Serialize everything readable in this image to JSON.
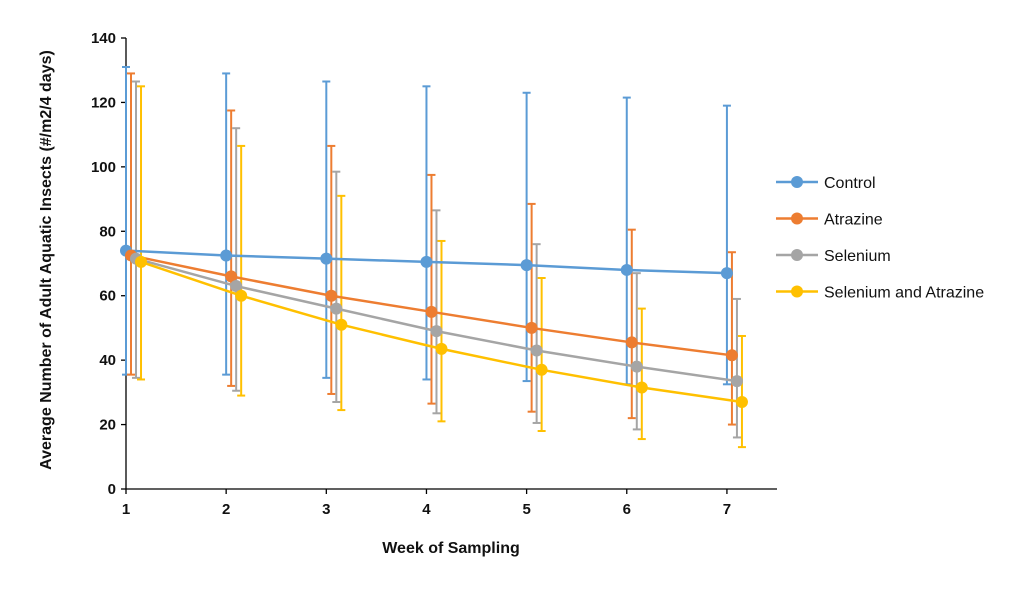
{
  "chart_data": {
    "type": "line",
    "xlabel": "Week of Sampling",
    "ylabel": "Average Number of Adult Aquatic Insects (#/m2/4 days)",
    "xlim": [
      1,
      7.5
    ],
    "ylim": [
      0,
      140
    ],
    "x_ticks": [
      "1",
      "2",
      "3",
      "4",
      "5",
      "6",
      "7"
    ],
    "y_ticks": [
      "0",
      "20",
      "40",
      "60",
      "80",
      "100",
      "120",
      "140"
    ],
    "grid": false,
    "legend_position": "right",
    "series": [
      {
        "name": "Control",
        "color": "#5B9BD5",
        "x": [
          1,
          2,
          3,
          4,
          5,
          6,
          7
        ],
        "values": [
          74,
          72.5,
          71.5,
          70.5,
          69.5,
          68,
          67
        ],
        "error_upper": [
          131,
          129,
          126.5,
          125,
          123,
          121.5,
          119
        ],
        "error_lower": [
          35.5,
          35.5,
          34.5,
          34,
          33.5,
          32.5,
          32.5
        ]
      },
      {
        "name": "Atrazine",
        "color": "#ED7D31",
        "x": [
          1.05,
          2.05,
          3.05,
          4.05,
          5.05,
          6.05,
          7.05
        ],
        "values": [
          72.5,
          66,
          60,
          55,
          50,
          45.5,
          41.5
        ],
        "error_upper": [
          129,
          117.5,
          106.5,
          97.5,
          88.5,
          80.5,
          73.5
        ],
        "error_lower": [
          35.5,
          32,
          29.5,
          26.5,
          24,
          22,
          20
        ]
      },
      {
        "name": "Selenium",
        "color": "#A5A5A5",
        "x": [
          1.1,
          2.1,
          3.1,
          4.1,
          5.1,
          6.1,
          7.1
        ],
        "values": [
          71.5,
          63,
          56,
          49,
          43,
          38,
          33.5
        ],
        "error_upper": [
          126.5,
          112,
          98.5,
          86.5,
          76,
          67,
          59
        ],
        "error_lower": [
          34.5,
          30.5,
          27,
          23.5,
          20.5,
          18.5,
          16
        ]
      },
      {
        "name": "Selenium and Atrazine",
        "color": "#FFC000",
        "x": [
          1.15,
          2.15,
          3.15,
          4.15,
          5.15,
          6.15,
          7.15
        ],
        "values": [
          70.5,
          60,
          51,
          43.5,
          37,
          31.5,
          27
        ],
        "error_upper": [
          125,
          106.5,
          91,
          77,
          65.5,
          56,
          47.5
        ],
        "error_lower": [
          34,
          29,
          24.5,
          21,
          18,
          15.5,
          13
        ]
      }
    ]
  }
}
